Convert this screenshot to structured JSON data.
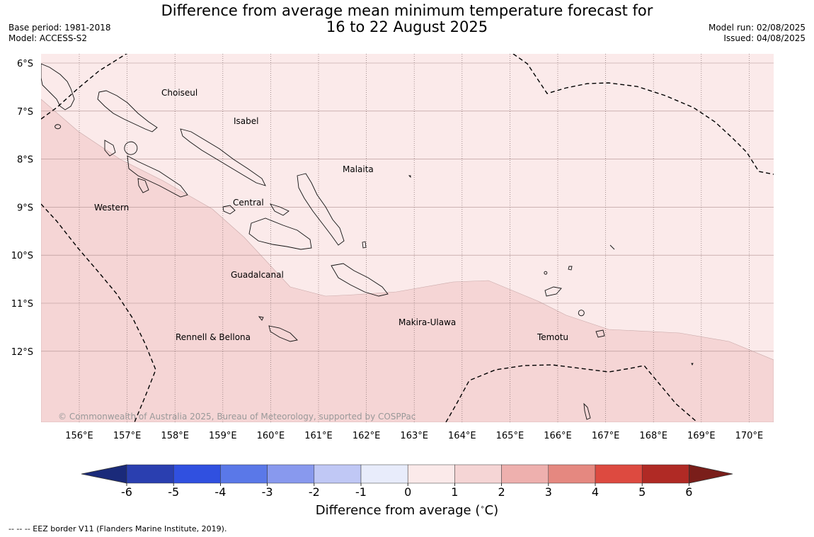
{
  "title_line1": "Difference from average mean minimum temperature forecast for",
  "title_line2": "16 to 22 August 2025",
  "base_period": "Base period: 1981-2018",
  "model": "Model: ACCESS-S2",
  "model_run": "Model run: 02/08/2025",
  "issued": "Issued: 04/08/2025",
  "lat_labels": [
    "6°S",
    "7°S",
    "8°S",
    "9°S",
    "10°S",
    "11°S",
    "12°S"
  ],
  "lon_labels": [
    "156°E",
    "157°E",
    "158°E",
    "159°E",
    "160°E",
    "161°E",
    "162°E",
    "163°E",
    "164°E",
    "165°E",
    "166°E",
    "167°E",
    "168°E",
    "169°E",
    "170°E"
  ],
  "place_labels": [
    "Choiseul",
    "Isabel",
    "Malaita",
    "Western",
    "Central",
    "Guadalcanal",
    "Makira-Ulawa",
    "Rennell & Bellona",
    "Temotu"
  ],
  "copyright": "© Commonwealth of Australia 2025, Bureau of Meteorology, supported by COSPPac",
  "colorbar": {
    "ticks": [
      "-6",
      "-5",
      "-4",
      "-3",
      "-2",
      "-1",
      "0",
      "1",
      "2",
      "3",
      "4",
      "5",
      "6"
    ],
    "colors": [
      "#1a2a7a",
      "#2a3fb0",
      "#3050e0",
      "#5a78e8",
      "#8899ee",
      "#c0c8f5",
      "#e8ecfb",
      "#fbeaea",
      "#f5d5d5",
      "#eeb0ae",
      "#e58880",
      "#dd4a40",
      "#b02a25",
      "#7a1e1a"
    ],
    "label": "Difference from average ($^\\circ$C)"
  },
  "region_colors": {
    "zero_to_one": "#fbeaea",
    "one_to_two": "#f5d5d5"
  },
  "footnote": "-- -- -- EEZ border V11 (Flanders Marine Institute, 2019)."
}
